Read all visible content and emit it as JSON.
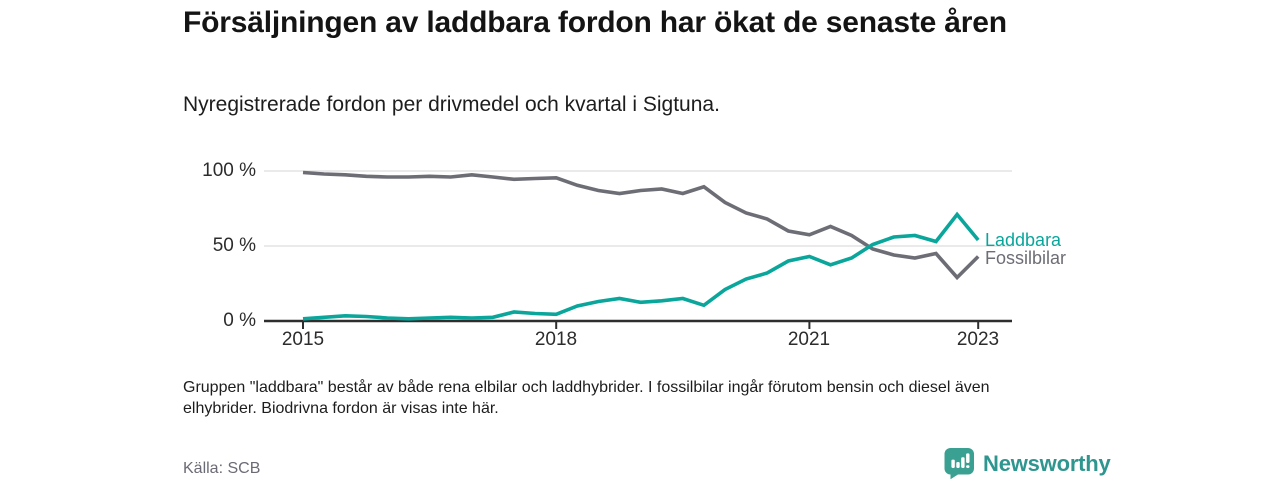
{
  "header": {
    "title": "Försäljningen av laddbara fordon har ökat de senaste åren",
    "subtitle": "Nyregistrerade fordon per drivmedel och kvartal i Sigtuna."
  },
  "chart_data": {
    "type": "line",
    "title": "Försäljningen av laddbara fordon har ökat de senaste åren",
    "subtitle": "Nyregistrerade fordon per drivmedel och kvartal i Sigtuna.",
    "unit": "%",
    "ylim": [
      0,
      100
    ],
    "grid": "horizontal",
    "legend": "line-end-labels",
    "y_ticks": [
      {
        "label": "100 %",
        "value": 100
      },
      {
        "label": "50 %",
        "value": 50
      },
      {
        "label": "0 %",
        "value": 0
      }
    ],
    "x_ticks": [
      {
        "label": "2015",
        "index": 0
      },
      {
        "label": "2018",
        "index": 12
      },
      {
        "label": "2021",
        "index": 24
      },
      {
        "label": "2023",
        "index": 32
      }
    ],
    "x": [
      "2015 Q1",
      "2015 Q2",
      "2015 Q3",
      "2015 Q4",
      "2016 Q1",
      "2016 Q2",
      "2016 Q3",
      "2016 Q4",
      "2017 Q1",
      "2017 Q2",
      "2017 Q3",
      "2017 Q4",
      "2018 Q1",
      "2018 Q2",
      "2018 Q3",
      "2018 Q4",
      "2019 Q1",
      "2019 Q2",
      "2019 Q3",
      "2019 Q4",
      "2020 Q1",
      "2020 Q2",
      "2020 Q3",
      "2020 Q4",
      "2021 Q1",
      "2021 Q2",
      "2021 Q3",
      "2021 Q4",
      "2022 Q1",
      "2022 Q2",
      "2022 Q3",
      "2022 Q4",
      "2023 Q1"
    ],
    "series": [
      {
        "name": "Laddbara",
        "color": "#0aa69b",
        "values": [
          1.5,
          2.5,
          3.5,
          3,
          2,
          1.5,
          2,
          2.5,
          2,
          2.5,
          6,
          5,
          4.5,
          10,
          13,
          15,
          12.5,
          13.5,
          15,
          10.5,
          21,
          28,
          32,
          40,
          43,
          37.5,
          42,
          51,
          56,
          57,
          53,
          71,
          54
        ]
      },
      {
        "name": "Fossilbilar",
        "color": "#6d6d76",
        "values": [
          99,
          98,
          97.5,
          96.5,
          96,
          96,
          96.5,
          96,
          97.5,
          96,
          94.5,
          95,
          95.5,
          90.5,
          87,
          85,
          87,
          88,
          85,
          89.5,
          79,
          72,
          68,
          60,
          57.5,
          63,
          57,
          48,
          44,
          42,
          45,
          29,
          43
        ]
      }
    ]
  },
  "footnote": {
    "text": "Gruppen \"laddbara\" består av både rena elbilar och laddhybrider. I fossilbilar ingår förutom bensin och diesel även elhybrider. Biodrivna fordon är visas inte här."
  },
  "footer": {
    "source": "Källa: SCB",
    "brand": "Newsworthy"
  },
  "colors": {
    "accent_teal": "#0aa69b",
    "line_gray": "#6d6d76",
    "logo_teal": "#3aa092",
    "brand_text_teal": "#2f968f",
    "gridline": "#dedede",
    "axis": "#2e2e2e"
  }
}
